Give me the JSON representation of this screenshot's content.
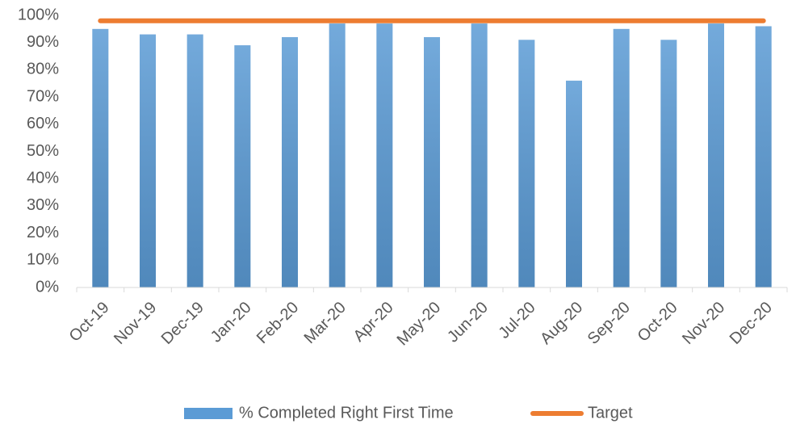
{
  "chart_data": {
    "type": "bar",
    "categories": [
      "Oct-19",
      "Nov-19",
      "Dec-19",
      "Jan-20",
      "Feb-20",
      "Mar-20",
      "Apr-20",
      "May-20",
      "Jun-20",
      "Jul-20",
      "Aug-20",
      "Sep-20",
      "Oct-20",
      "Nov-20",
      "Dec-20"
    ],
    "series": [
      {
        "name": "% Completed Right First Time",
        "type": "bar",
        "color": "#5b9bd5",
        "values": [
          95,
          93,
          93,
          89,
          92,
          97,
          97,
          92,
          97,
          91,
          76,
          95,
          91,
          97,
          96
        ]
      },
      {
        "name": "Target",
        "type": "line",
        "color": "#ed7d31",
        "values": [
          98,
          98,
          98,
          98,
          98,
          98,
          98,
          98,
          98,
          98,
          98,
          98,
          98,
          98,
          98
        ]
      }
    ],
    "ylim": [
      0,
      100
    ],
    "yticks": [
      {
        "value": 0,
        "label": "0%"
      },
      {
        "value": 10,
        "label": "10%"
      },
      {
        "value": 20,
        "label": "20%"
      },
      {
        "value": 30,
        "label": "30%"
      },
      {
        "value": 40,
        "label": "40%"
      },
      {
        "value": 50,
        "label": "50%"
      },
      {
        "value": 60,
        "label": "60%"
      },
      {
        "value": 70,
        "label": "70%"
      },
      {
        "value": 80,
        "label": "80%"
      },
      {
        "value": 90,
        "label": "90%"
      },
      {
        "value": 100,
        "label": "100%"
      }
    ],
    "grid": false,
    "legend": "bottom"
  }
}
